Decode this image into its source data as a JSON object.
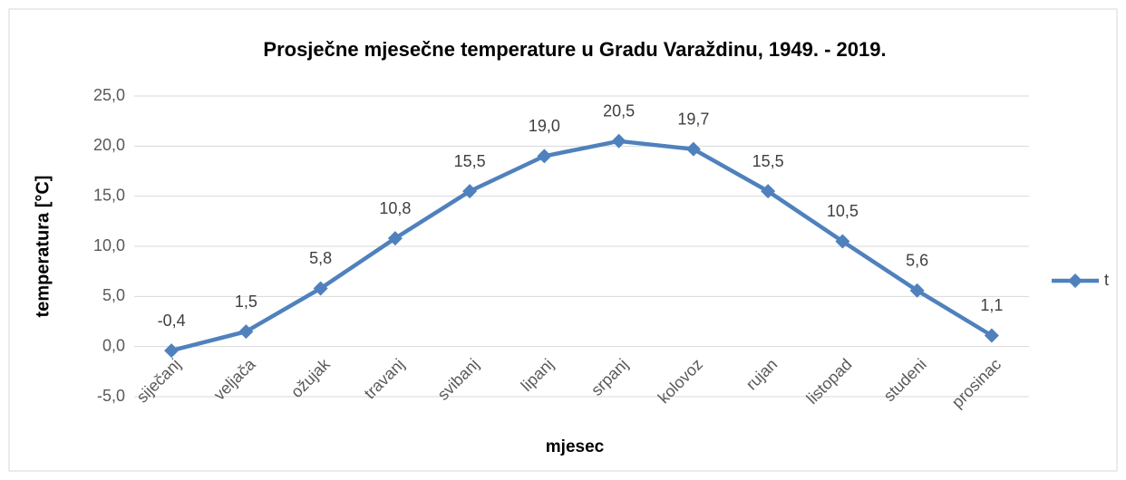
{
  "chart_data": {
    "type": "line",
    "title": "Prosječne mjesečne temperature u Gradu Varaždinu, 1949. - 2019.",
    "x_label": "mjesec",
    "y_label": "temperatura [°C]",
    "categories": [
      "siječanj",
      "veljača",
      "ožujak",
      "travanj",
      "svibanj",
      "lipanj",
      "srpanj",
      "kolovoz",
      "rujan",
      "listopad",
      "studeni",
      "prosinac"
    ],
    "series": [
      {
        "name": "t",
        "color": "#4f81bd",
        "values": [
          -0.4,
          1.5,
          5.8,
          10.8,
          15.5,
          19.0,
          20.5,
          19.7,
          15.5,
          10.5,
          5.6,
          1.1
        ],
        "value_labels": [
          "-0,4",
          "1,5",
          "5,8",
          "10,8",
          "15,5",
          "19,0",
          "20,5",
          "19,7",
          "15,5",
          "10,5",
          "5,6",
          "1,1"
        ]
      }
    ],
    "ylim": [
      -5,
      25
    ],
    "yticks": [
      {
        "value": -5,
        "label": "-5,0"
      },
      {
        "value": 0,
        "label": "0,0"
      },
      {
        "value": 5,
        "label": "5,0"
      },
      {
        "value": 10,
        "label": "10,0"
      },
      {
        "value": 15,
        "label": "15,0"
      },
      {
        "value": 20,
        "label": "20,0"
      },
      {
        "value": 25,
        "label": "25,0"
      }
    ],
    "grid": true,
    "legend": "right"
  }
}
